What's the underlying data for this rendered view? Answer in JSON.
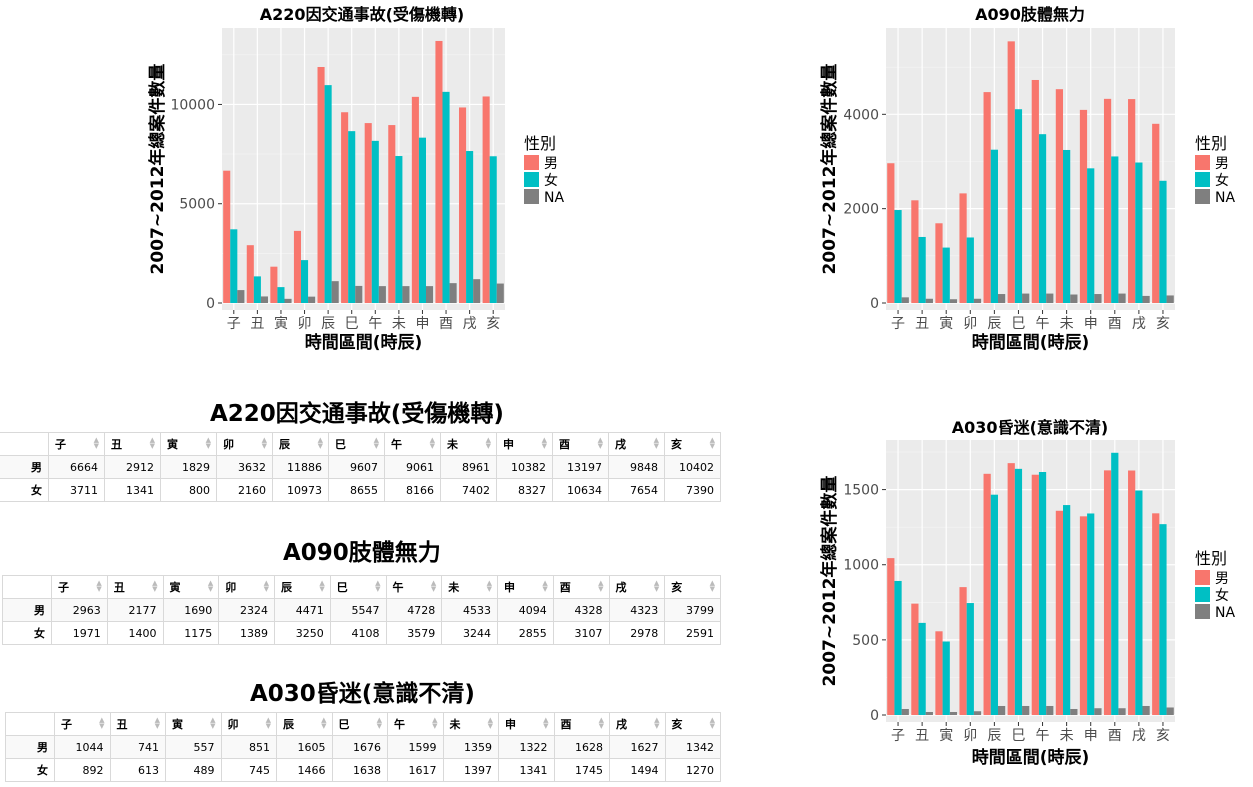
{
  "chart_data": [
    {
      "type": "bar",
      "title": "A220因交通事故(受傷機轉)",
      "xlabel": "時間區間(時辰)",
      "ylabel": "2007~2012年總案件數量",
      "categories": [
        "子",
        "丑",
        "寅",
        "卯",
        "辰",
        "巳",
        "午",
        "未",
        "申",
        "酉",
        "戌",
        "亥"
      ],
      "yticks": [
        0,
        5000,
        10000
      ],
      "ylim": [
        0,
        13850
      ],
      "legend_title": "性別",
      "legend_position": "right",
      "grid": true,
      "series": [
        {
          "name": "男",
          "color": "#F8766D",
          "values": [
            6664,
            2912,
            1829,
            3632,
            11886,
            9607,
            9061,
            8961,
            10382,
            13197,
            9848,
            10402
          ]
        },
        {
          "name": "女",
          "color": "#00BFC4",
          "values": [
            3711,
            1341,
            800,
            2160,
            10973,
            8655,
            8166,
            7402,
            8327,
            10634,
            7654,
            7390
          ]
        },
        {
          "name": "NA",
          "color": "#7F7F7F",
          "values": [
            650,
            330,
            210,
            320,
            1100,
            860,
            850,
            850,
            850,
            1000,
            1200,
            980
          ]
        }
      ]
    },
    {
      "type": "bar",
      "title": "A090肢體無力",
      "xlabel": "時間區間(時辰)",
      "ylabel": "2007~2012年總案件數量",
      "categories": [
        "子",
        "丑",
        "寅",
        "卯",
        "辰",
        "巳",
        "午",
        "未",
        "申",
        "酉",
        "戌",
        "亥"
      ],
      "yticks": [
        0,
        2000,
        4000
      ],
      "ylim": [
        0,
        5830
      ],
      "legend_title": "性別",
      "legend_position": "right",
      "grid": true,
      "series": [
        {
          "name": "男",
          "color": "#F8766D",
          "values": [
            2963,
            2177,
            1690,
            2324,
            4471,
            5547,
            4728,
            4533,
            4094,
            4328,
            4323,
            3799
          ]
        },
        {
          "name": "女",
          "color": "#00BFC4",
          "values": [
            1971,
            1400,
            1175,
            1389,
            3250,
            4108,
            3579,
            3244,
            2855,
            3107,
            2978,
            2591
          ]
        },
        {
          "name": "NA",
          "color": "#7F7F7F",
          "values": [
            120,
            90,
            80,
            90,
            190,
            200,
            200,
            180,
            190,
            200,
            150,
            160
          ]
        }
      ]
    },
    {
      "type": "bar",
      "title": "A030昏迷(意識不清)",
      "xlabel": "時間區間(時辰)",
      "ylabel": "2007~2012年總案件數量",
      "categories": [
        "子",
        "丑",
        "寅",
        "卯",
        "辰",
        "巳",
        "午",
        "未",
        "申",
        "酉",
        "戌",
        "亥"
      ],
      "yticks": [
        0,
        500,
        1000,
        1500
      ],
      "ylim": [
        0,
        1830
      ],
      "legend_title": "性別",
      "legend_position": "right",
      "grid": true,
      "series": [
        {
          "name": "男",
          "color": "#F8766D",
          "values": [
            1044,
            741,
            557,
            851,
            1605,
            1676,
            1599,
            1359,
            1322,
            1628,
            1627,
            1342
          ]
        },
        {
          "name": "女",
          "color": "#00BFC4",
          "values": [
            892,
            613,
            489,
            745,
            1466,
            1638,
            1617,
            1397,
            1341,
            1745,
            1494,
            1270
          ]
        },
        {
          "name": "NA",
          "color": "#7F7F7F",
          "values": [
            40,
            20,
            20,
            25,
            60,
            60,
            60,
            40,
            45,
            45,
            60,
            50
          ]
        }
      ]
    }
  ],
  "tables": [
    {
      "title": "A220因交通事故(受傷機轉)",
      "columns": [
        "子",
        "丑",
        "寅",
        "卯",
        "辰",
        "巳",
        "午",
        "未",
        "申",
        "酉",
        "戌",
        "亥"
      ],
      "rows": [
        {
          "label": "男",
          "values": [
            "6664",
            "2912",
            "1829",
            "3632",
            "11886",
            "9607",
            "9061",
            "8961",
            "10382",
            "13197",
            "9848",
            "10402"
          ]
        },
        {
          "label": "女",
          "values": [
            "3711",
            "1341",
            "800",
            "2160",
            "10973",
            "8655",
            "8166",
            "7402",
            "8327",
            "10634",
            "7654",
            "7390"
          ]
        }
      ]
    },
    {
      "title": "A090肢體無力",
      "columns": [
        "子",
        "丑",
        "寅",
        "卯",
        "辰",
        "巳",
        "午",
        "未",
        "申",
        "酉",
        "戌",
        "亥"
      ],
      "rows": [
        {
          "label": "男",
          "values": [
            "2963",
            "2177",
            "1690",
            "2324",
            "4471",
            "5547",
            "4728",
            "4533",
            "4094",
            "4328",
            "4323",
            "3799"
          ]
        },
        {
          "label": "女",
          "values": [
            "1971",
            "1400",
            "1175",
            "1389",
            "3250",
            "4108",
            "3579",
            "3244",
            "2855",
            "3107",
            "2978",
            "2591"
          ]
        }
      ]
    },
    {
      "title": "A030昏迷(意識不清)",
      "columns": [
        "子",
        "丑",
        "寅",
        "卯",
        "辰",
        "巳",
        "午",
        "未",
        "申",
        "酉",
        "戌",
        "亥"
      ],
      "rows": [
        {
          "label": "男",
          "values": [
            "1044",
            "741",
            "557",
            "851",
            "1605",
            "1676",
            "1599",
            "1359",
            "1322",
            "1628",
            "1627",
            "1342"
          ]
        },
        {
          "label": "女",
          "values": [
            "892",
            "613",
            "489",
            "745",
            "1466",
            "1638",
            "1617",
            "1397",
            "1341",
            "1745",
            "1494",
            "1270"
          ]
        }
      ]
    }
  ]
}
